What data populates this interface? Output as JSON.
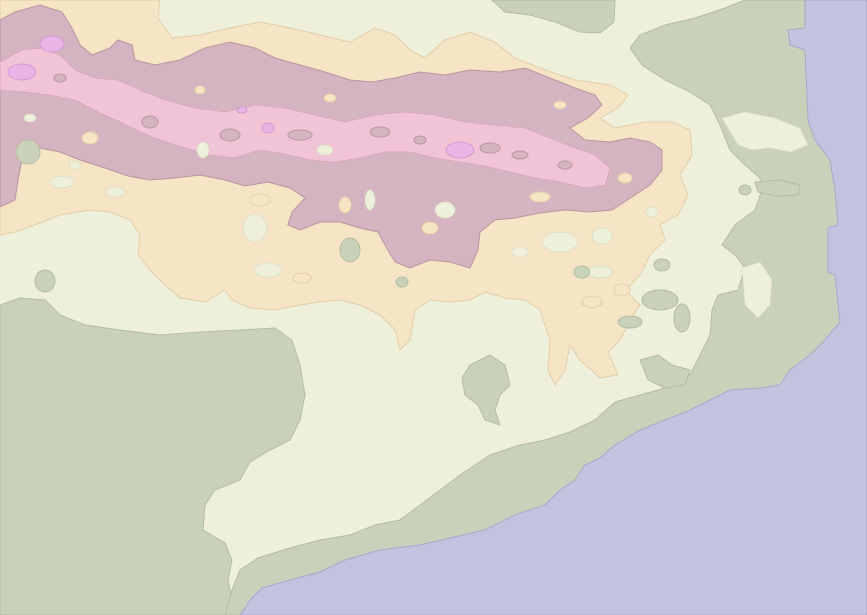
{
  "map": {
    "colors": {
      "land_low": "#eef0dc",
      "lowland": "#c9d1bb",
      "sea": "#c3c3e0",
      "hills": "#f5e5c5",
      "mountains": "#d5b4c1",
      "high": "#f1c3d6",
      "peaks": "#e8b5e6"
    }
  }
}
